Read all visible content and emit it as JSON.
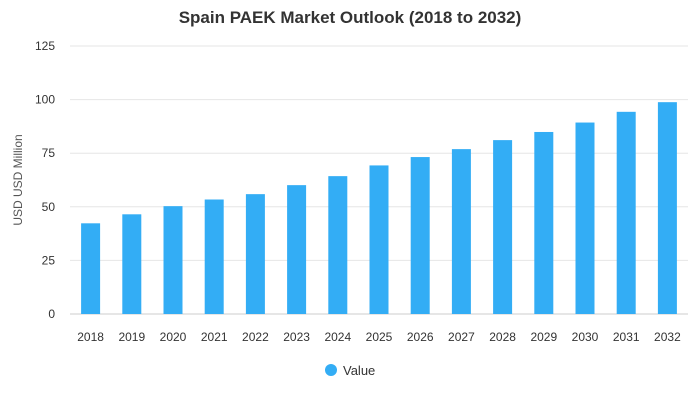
{
  "chart_data": {
    "type": "bar",
    "title": "Spain PAEK Market Outlook (2018 to 2032)",
    "xlabel": "",
    "ylabel": "USD USD Million",
    "ylim": [
      0,
      125
    ],
    "yticks": [
      "0",
      "25",
      "50",
      "75",
      "100",
      "125"
    ],
    "grid": true,
    "legend_position": "bottom",
    "bar_color": "#33adf5",
    "categories": [
      "2018",
      "2019",
      "2020",
      "2021",
      "2022",
      "2023",
      "2024",
      "2025",
      "2026",
      "2027",
      "2028",
      "2029",
      "2030",
      "2031",
      "2032"
    ],
    "series": [
      {
        "name": "Value",
        "values": [
          42.3,
          46.5,
          50.3,
          53.4,
          55.9,
          60.1,
          64.3,
          69.3,
          73.2,
          76.9,
          81.1,
          84.9,
          89.3,
          94.3,
          98.8
        ]
      }
    ]
  }
}
